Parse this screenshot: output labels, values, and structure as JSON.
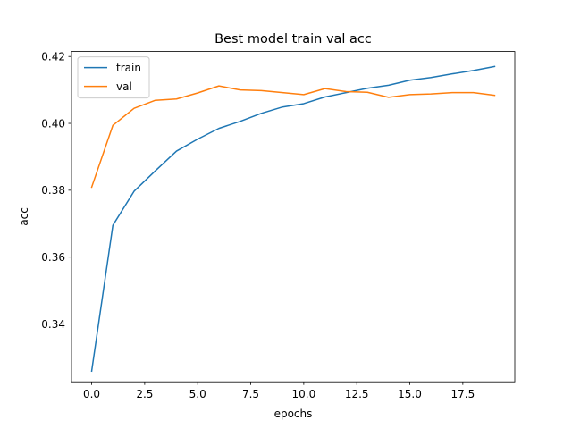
{
  "chart_data": {
    "type": "line",
    "title": "Best model train val acc",
    "xlabel": "epochs",
    "ylabel": "acc",
    "x": [
      0,
      1,
      2,
      3,
      4,
      5,
      6,
      7,
      8,
      9,
      10,
      11,
      12,
      13,
      14,
      15,
      16,
      17,
      18,
      19
    ],
    "xlim": [
      -0.95,
      19.95
    ],
    "ylim": [
      0.3227,
      0.4215
    ],
    "xticks": [
      0.0,
      2.5,
      5.0,
      7.5,
      10.0,
      12.5,
      15.0,
      17.5
    ],
    "xtick_labels": [
      "0.0",
      "2.5",
      "5.0",
      "7.5",
      "10.0",
      "12.5",
      "15.0",
      "17.5"
    ],
    "yticks": [
      0.34,
      0.36,
      0.38,
      0.4,
      0.42
    ],
    "ytick_labels": [
      "0.34",
      "0.36",
      "0.38",
      "0.40",
      "0.42"
    ],
    "grid": false,
    "legend": "upper-left",
    "series": [
      {
        "name": "train",
        "color": "#1f77b4",
        "values": [
          0.3259,
          0.3695,
          0.3797,
          0.3858,
          0.3917,
          0.3953,
          0.3985,
          0.4006,
          0.403,
          0.4049,
          0.4059,
          0.4079,
          0.4092,
          0.4105,
          0.4114,
          0.4129,
          0.4137,
          0.4148,
          0.4158,
          0.417
        ]
      },
      {
        "name": "val",
        "color": "#ff7f0e",
        "values": [
          0.3809,
          0.3994,
          0.4045,
          0.4069,
          0.4073,
          0.4091,
          0.4112,
          0.41,
          0.4098,
          0.4092,
          0.4086,
          0.4104,
          0.4095,
          0.4093,
          0.4078,
          0.4086,
          0.4088,
          0.4092,
          0.4092,
          0.4084
        ]
      }
    ]
  }
}
